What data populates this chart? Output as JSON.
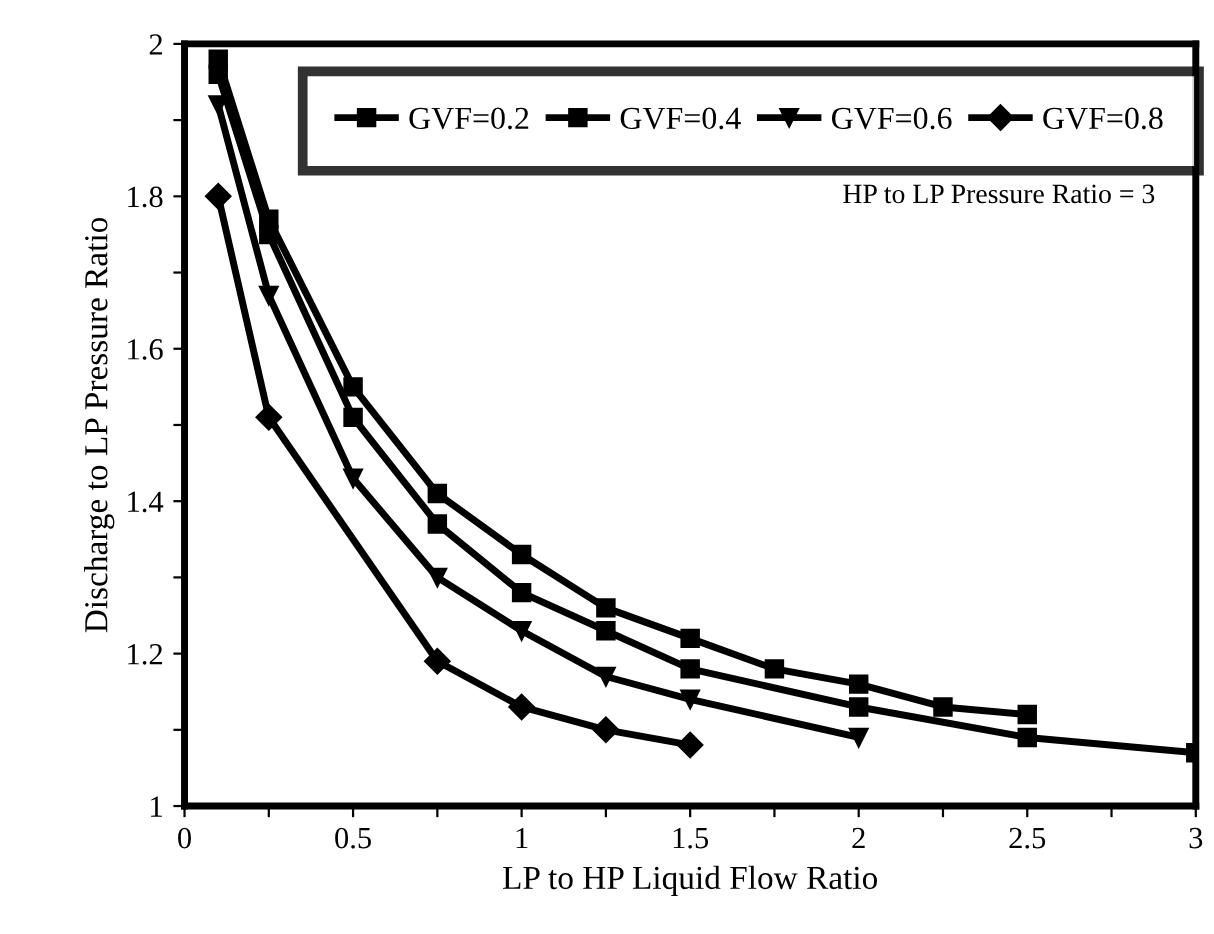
{
  "chart_data": {
    "type": "line",
    "xlabel": "LP to HP Liquid Flow Ratio",
    "ylabel": "Discharge to LP Pressure Ratio",
    "annotations": [
      "HP to LP Pressure Ratio = 3"
    ],
    "xlim": [
      0,
      3
    ],
    "ylim": [
      1,
      2
    ],
    "xticks": [
      0,
      {
        "value": 0.25,
        "label": null
      },
      0.5,
      {
        "value": 0.75,
        "label": null
      },
      1,
      {
        "value": 1.25,
        "label": null
      },
      1.5,
      {
        "value": 1.75,
        "label": null
      },
      2,
      {
        "value": 2.25,
        "label": null
      },
      2.5,
      {
        "value": 2.75,
        "label": null
      },
      3
    ],
    "yticks": [
      1,
      {
        "value": 1.1,
        "label": null
      },
      1.2,
      {
        "value": 1.3,
        "label": null
      },
      1.4,
      {
        "value": 1.5,
        "label": null
      },
      1.6,
      {
        "value": 1.7,
        "label": null
      },
      1.8,
      {
        "value": 1.9,
        "label": null
      },
      2
    ],
    "grid": false,
    "legend": "top",
    "line_style": "solid",
    "series": [
      {
        "name": "GVF=0.2",
        "color": "#000000",
        "marker": "square",
        "x": [
          0.1,
          0.25,
          0.5,
          0.75,
          1,
          1.25,
          1.5,
          1.75,
          2,
          2.25,
          2.5
        ],
        "values": [
          1.98,
          1.77,
          1.55,
          1.41,
          1.33,
          1.26,
          1.22,
          1.18,
          1.16,
          1.13,
          1.12
        ]
      },
      {
        "name": "GVF=0.4",
        "color": "#000000",
        "marker": "square",
        "x": [
          0.1,
          0.25,
          0.5,
          0.75,
          1,
          1.25,
          1.5,
          2,
          2.5,
          3
        ],
        "values": [
          1.96,
          1.75,
          1.51,
          1.37,
          1.28,
          1.23,
          1.18,
          1.13,
          1.09,
          1.07
        ]
      },
      {
        "name": "GVF=0.6",
        "color": "#000000",
        "marker": "triangle",
        "x": [
          0.1,
          0.25,
          0.5,
          0.75,
          1,
          1.25,
          1.5,
          2
        ],
        "values": [
          1.92,
          1.67,
          1.43,
          1.3,
          1.23,
          1.17,
          1.14,
          1.09
        ]
      },
      {
        "name": "GVF=0.8",
        "color": "#000000",
        "marker": "diamond",
        "x": [
          0.1,
          0.25,
          0.75,
          1,
          1.25,
          1.5
        ],
        "values": [
          1.8,
          1.51,
          1.19,
          1.13,
          1.1,
          1.08
        ]
      }
    ]
  }
}
